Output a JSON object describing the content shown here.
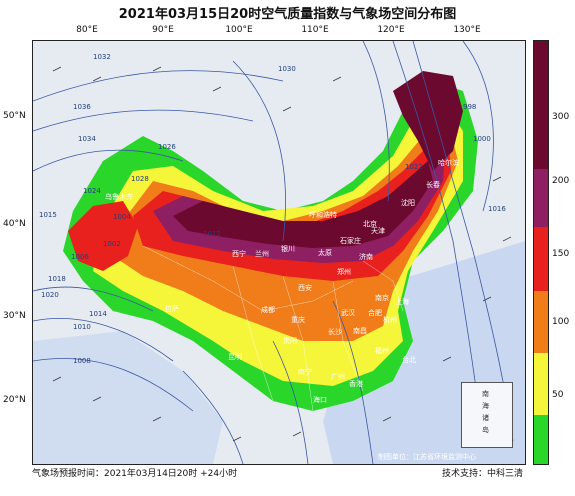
{
  "title": "2021年03月15日20时空气质量指数与气象场空间分布图",
  "lon_ticks": [
    "80°E",
    "90°E",
    "100°E",
    "110°E",
    "120°E",
    "130°E"
  ],
  "lat_ticks": [
    "50°N",
    "40°N",
    "30°N",
    "20°N"
  ],
  "legend": {
    "labels": [
      "300",
      "200",
      "150",
      "100",
      "50"
    ],
    "colors": [
      "#6b0a2e",
      "#8e1f63",
      "#e8201e",
      "#f07c1a",
      "#f5f53a",
      "#2bd62b"
    ]
  },
  "cities": [
    "乌鲁木齐",
    "呼和浩特",
    "北京",
    "沈阳",
    "长春",
    "哈尔滨",
    "石家庄",
    "济南",
    "太原",
    "银川",
    "兰州",
    "西宁",
    "郑州",
    "西安",
    "拉萨",
    "成都",
    "重庆",
    "武汉",
    "合肥",
    "南京",
    "上海",
    "杭州",
    "长沙",
    "南昌",
    "福州",
    "贵阳",
    "昆明",
    "南宁",
    "广州",
    "香港",
    "海口",
    "台北",
    "天津"
  ],
  "isobars": [
    "1032",
    "1036",
    "1034",
    "1026",
    "1028",
    "1024",
    "1015",
    "1004",
    "1006",
    "1002",
    "1012",
    "1018",
    "1014",
    "1020",
    "1010",
    "1008",
    "1022",
    "1030",
    "998",
    "1000",
    "1016"
  ],
  "inset_labels": [
    "南",
    "海",
    "诸",
    "岛"
  ],
  "footer": {
    "left": "气象场预报时间：2021年03月14日20时 +24小时",
    "producer": "制图单位：江苏省环境监测中心",
    "support": "技术支持：中科三清"
  }
}
